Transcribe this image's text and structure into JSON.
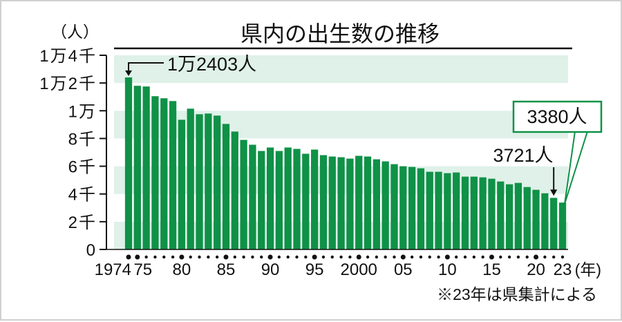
{
  "chart_data": {
    "type": "bar",
    "title": "県内の出生数の推移",
    "y_unit_label": "（人）",
    "x_unit_label": "(年)",
    "note": "※23年は県集計による",
    "ylim": [
      0,
      14000
    ],
    "y_ticks": [
      {
        "value": 0,
        "label": "0"
      },
      {
        "value": 2000,
        "label": "2千"
      },
      {
        "value": 4000,
        "label": "4千"
      },
      {
        "value": 6000,
        "label": "6千"
      },
      {
        "value": 8000,
        "label": "8千"
      },
      {
        "value": 10000,
        "label": "1万"
      },
      {
        "value": 12000,
        "label": "1万2千"
      },
      {
        "value": 14000,
        "label": "1万4千"
      }
    ],
    "x_tick_labels": [
      {
        "year": 1974,
        "label": "1974"
      },
      {
        "year": 1975,
        "label": "75"
      },
      {
        "year": 1980,
        "label": "80"
      },
      {
        "year": 1985,
        "label": "85"
      },
      {
        "year": 1990,
        "label": "90"
      },
      {
        "year": 1995,
        "label": "95"
      },
      {
        "year": 2000,
        "label": "2000"
      },
      {
        "year": 2005,
        "label": "05"
      },
      {
        "year": 2010,
        "label": "10"
      },
      {
        "year": 2015,
        "label": "15"
      },
      {
        "year": 2020,
        "label": "20"
      },
      {
        "year": 2023,
        "label": "23"
      }
    ],
    "categories": [
      1974,
      1975,
      1976,
      1977,
      1978,
      1979,
      1980,
      1981,
      1982,
      1983,
      1984,
      1985,
      1986,
      1987,
      1988,
      1989,
      1990,
      1991,
      1992,
      1993,
      1994,
      1995,
      1996,
      1997,
      1998,
      1999,
      2000,
      2001,
      2002,
      2003,
      2004,
      2005,
      2006,
      2007,
      2008,
      2009,
      2010,
      2011,
      2012,
      2013,
      2014,
      2015,
      2016,
      2017,
      2018,
      2019,
      2020,
      2021,
      2022,
      2023
    ],
    "values": [
      12403,
      11800,
      11750,
      11050,
      10900,
      10700,
      9350,
      10150,
      9750,
      9800,
      9650,
      9050,
      8500,
      7900,
      7550,
      7100,
      7350,
      7100,
      7350,
      7250,
      6900,
      7200,
      6800,
      6700,
      6650,
      6550,
      6750,
      6700,
      6500,
      6350,
      6150,
      6000,
      5950,
      5850,
      5600,
      5600,
      5500,
      5550,
      5250,
      5250,
      5200,
      5100,
      4900,
      4700,
      4800,
      4500,
      4300,
      4050,
      3721,
      3380
    ],
    "annotations": [
      {
        "year": 1974,
        "text": "1万2403人"
      },
      {
        "year": 2022,
        "text": "3721人"
      },
      {
        "year": 2023,
        "text": "3380人",
        "boxed": true
      }
    ],
    "grid": "alternating horizontal bands",
    "colors": {
      "bar": "#0f9147",
      "band_dark": "#dff1e8",
      "band_light": "#ffffff",
      "accent_box": "#0f9147"
    }
  }
}
